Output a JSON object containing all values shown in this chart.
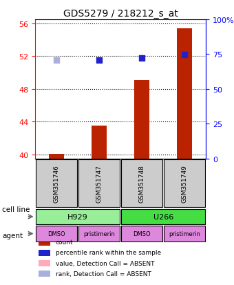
{
  "title": "GDS5279 / 218212_s_at",
  "samples": [
    "GSM351746",
    "GSM351747",
    "GSM351748",
    "GSM351749"
  ],
  "bar_values": [
    40.1,
    43.5,
    49.1,
    55.4
  ],
  "bar_color": "#bb2200",
  "dot_values": [
    51.5,
    51.5,
    51.8,
    52.2
  ],
  "dot_colors": [
    "#aab0dd",
    "#2222cc",
    "#2222cc",
    "#2222cc"
  ],
  "dot_absent": [
    true,
    false,
    false,
    false
  ],
  "ylim_left": [
    39.5,
    56.5
  ],
  "ylim_right": [
    0,
    100
  ],
  "yticks_left": [
    40,
    44,
    48,
    52,
    56
  ],
  "ytick_labels_left": [
    "40",
    "44",
    "48",
    "52",
    "56"
  ],
  "yticks_right": [
    0,
    25,
    50,
    75,
    100
  ],
  "ytick_labels_right": [
    "0",
    "25",
    "50",
    "75",
    "100%"
  ],
  "cell_lines": [
    [
      "H929",
      0,
      2
    ],
    [
      "U266",
      2,
      4
    ]
  ],
  "cell_line_colors": [
    "#99ee99",
    "#44dd44"
  ],
  "agents": [
    "DMSO",
    "pristimerin",
    "DMSO",
    "pristimerin"
  ],
  "agent_color": "#dd88dd",
  "legend_items": [
    {
      "label": "count",
      "color": "#bb2200",
      "absent": false
    },
    {
      "label": "percentile rank within the sample",
      "color": "#2222cc",
      "absent": false
    },
    {
      "label": "value, Detection Call = ABSENT",
      "color": "#ffaabb",
      "absent": true
    },
    {
      "label": "rank, Detection Call = ABSENT",
      "color": "#aab0dd",
      "absent": true
    }
  ],
  "cell_line_label": "cell line",
  "agent_label": "agent",
  "bar_base": 39.5
}
